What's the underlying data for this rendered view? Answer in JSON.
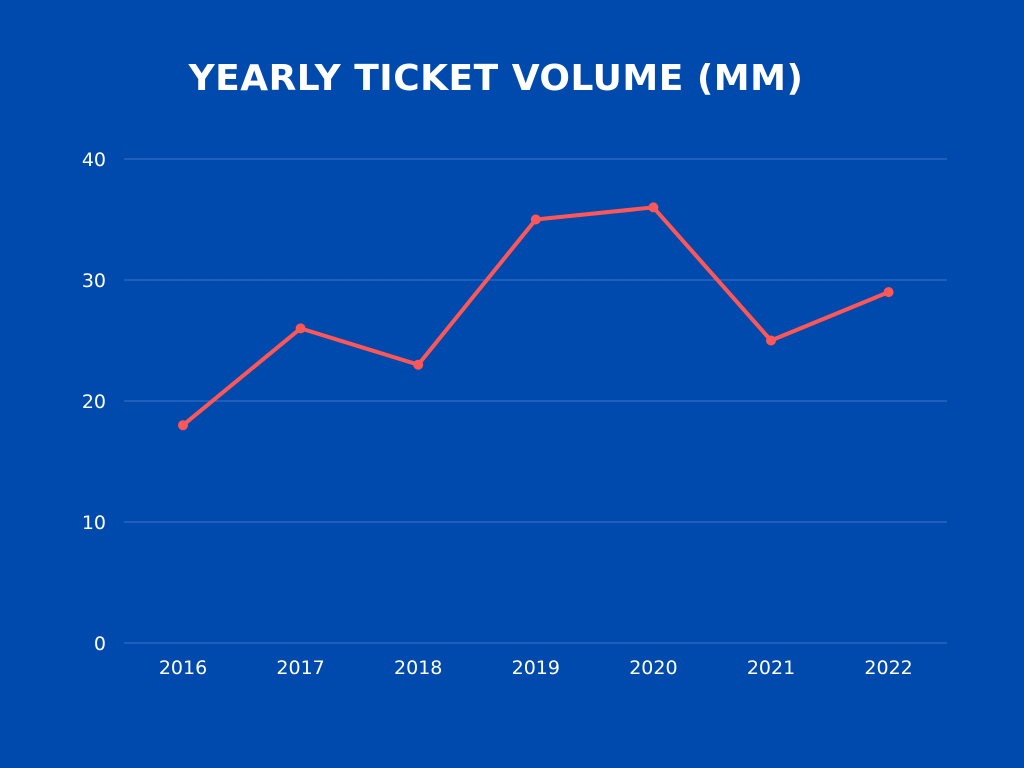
{
  "chart_data": {
    "type": "line",
    "title": "YEARLY TICKET VOLUME (MM)",
    "xlabel": "",
    "ylabel": "",
    "categories": [
      "2016",
      "2017",
      "2018",
      "2019",
      "2020",
      "2021",
      "2022"
    ],
    "series": [
      {
        "values": [
          18,
          26,
          23,
          35,
          36,
          25,
          29
        ]
      }
    ],
    "ylim": [
      0,
      40
    ],
    "yticks": [
      0,
      10,
      20,
      30,
      40
    ],
    "grid": true,
    "legend": "none"
  },
  "colors": {
    "background": "#004AAD",
    "line": "#FF5757",
    "gridline": "#3A74C6",
    "text": "#FFFFFF"
  }
}
